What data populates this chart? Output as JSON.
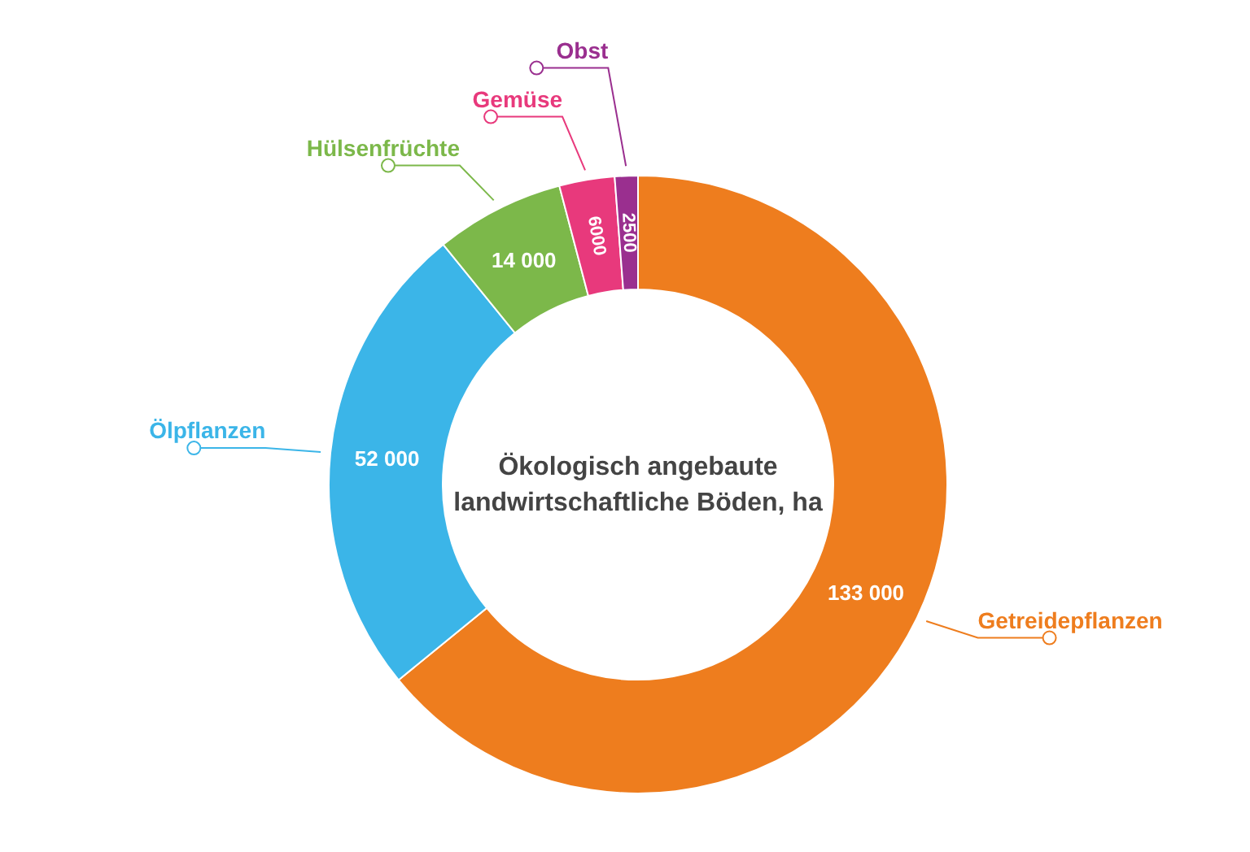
{
  "chart_data": {
    "type": "donut",
    "title": "Ökologisch angebaute landwirtschaftliche Böden, ha",
    "categories": [
      "Getreidepflanzen",
      "Ölpflanzen",
      "Hülsenfrüchte",
      "Gemüse",
      "Obst"
    ],
    "values": [
      133000,
      52000,
      14000,
      6000,
      2500
    ],
    "colors": [
      "#ee7d1e",
      "#3bb5e8",
      "#7cb84a",
      "#e8397c",
      "#9a2f8f"
    ],
    "value_labels": [
      "133 000",
      "52 000",
      "14 000",
      "6000",
      "2500"
    ]
  }
}
